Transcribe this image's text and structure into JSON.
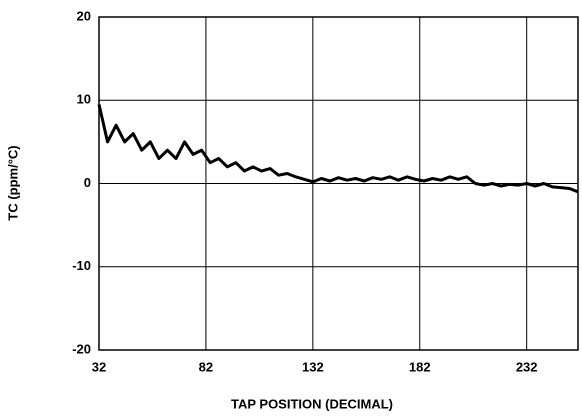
{
  "chart_data": {
    "type": "line",
    "x_label": "TAP POSITION (DECIMAL)",
    "y_label": "TC (ppm/°C)",
    "x": [
      32,
      36,
      40,
      44,
      48,
      52,
      56,
      60,
      64,
      68,
      72,
      76,
      80,
      84,
      88,
      92,
      96,
      100,
      104,
      108,
      112,
      116,
      120,
      124,
      128,
      132,
      136,
      140,
      144,
      148,
      152,
      156,
      160,
      164,
      168,
      172,
      176,
      180,
      184,
      188,
      192,
      196,
      200,
      204,
      208,
      212,
      216,
      220,
      224,
      228,
      232,
      236,
      240,
      244,
      248,
      252,
      256
    ],
    "series": [
      {
        "name": "TC",
        "color": "#000000",
        "values": [
          9.5,
          5,
          7,
          5,
          6,
          4,
          5,
          3,
          4,
          3,
          5,
          3.5,
          4,
          2.5,
          3,
          2,
          2.5,
          1.5,
          2,
          1.5,
          1.8,
          1,
          1.2,
          0.8,
          0.5,
          0.2,
          0.6,
          0.3,
          0.7,
          0.4,
          0.6,
          0.3,
          0.7,
          0.5,
          0.8,
          0.4,
          0.8,
          0.5,
          0.3,
          0.6,
          0.4,
          0.8,
          0.5,
          0.8,
          0,
          -0.2,
          0,
          -0.3,
          -0.1,
          -0.2,
          0,
          -0.3,
          0,
          -0.4,
          -0.5,
          -0.6,
          -1
        ]
      }
    ],
    "xlim": [
      32,
      256
    ],
    "xticks": [
      32,
      82,
      132,
      182,
      232
    ],
    "ylim": [
      -20,
      20
    ],
    "yticks": [
      -20,
      -10,
      0,
      10,
      20
    ],
    "grid": true
  }
}
